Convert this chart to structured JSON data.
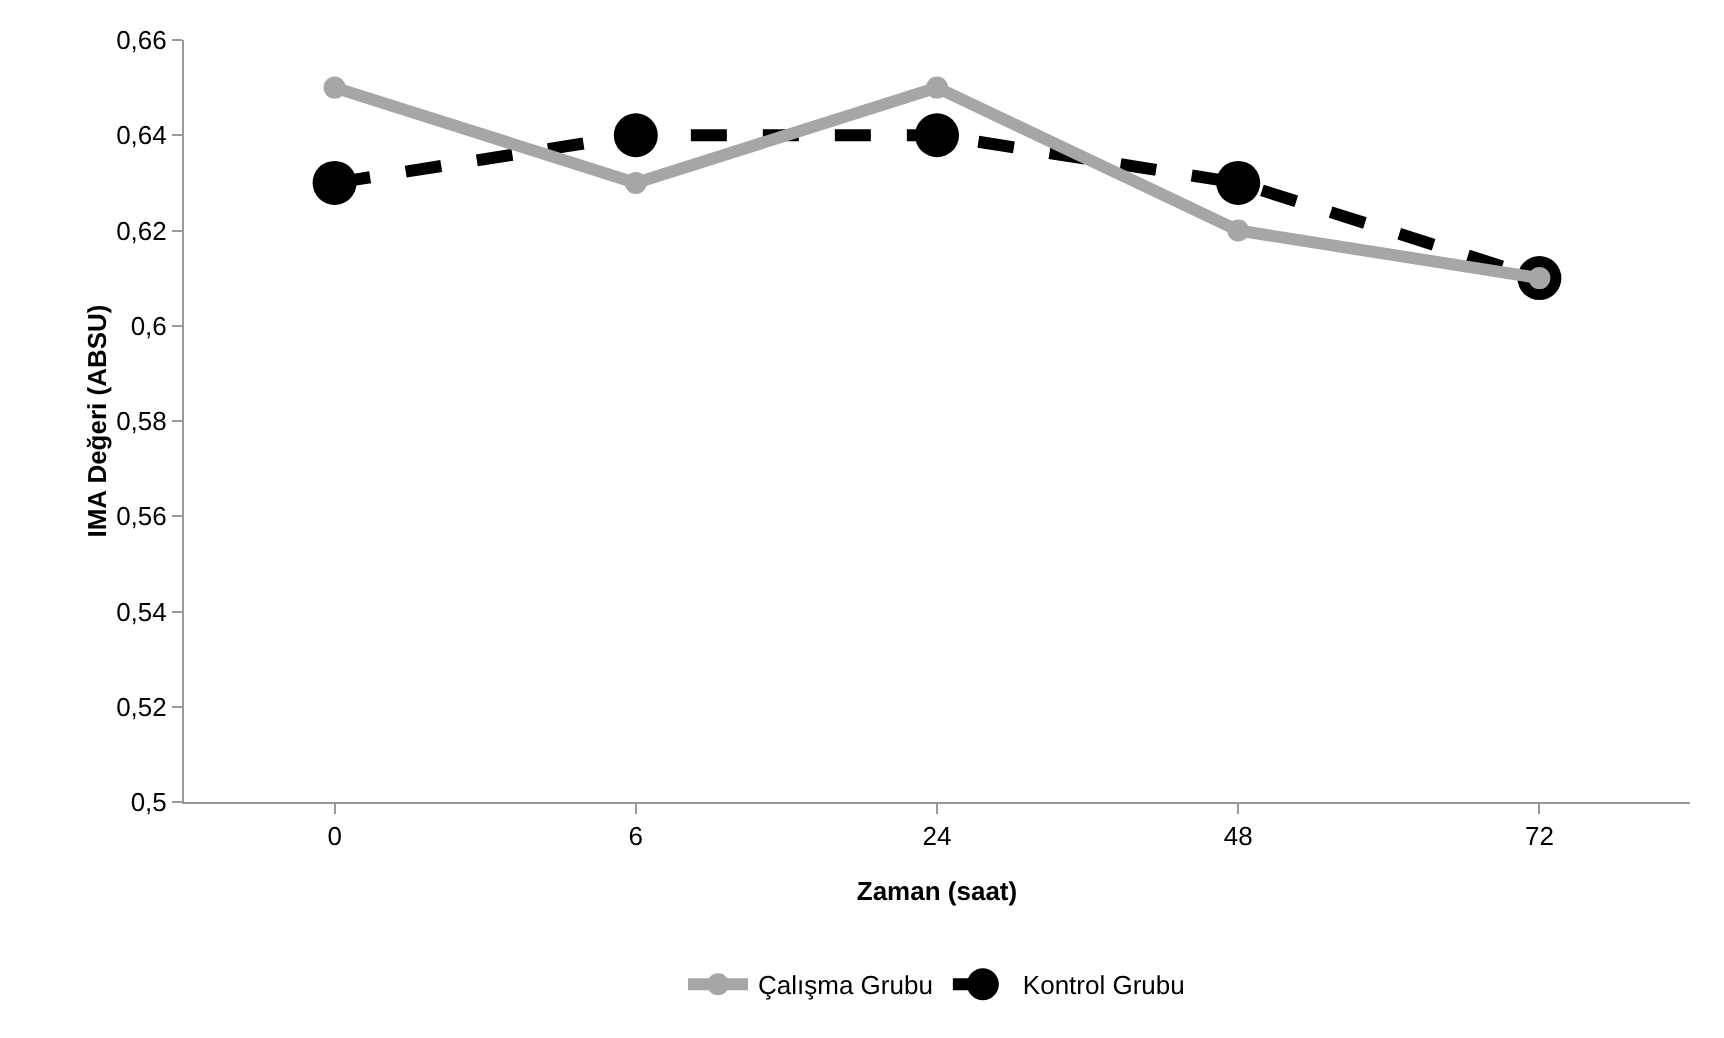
{
  "chart_data": {
    "type": "line",
    "xlabel": "Zaman (saat)",
    "ylabel": "IMA Değeri (ABSU)",
    "categories": [
      "0",
      "6",
      "24",
      "48",
      "72"
    ],
    "series": [
      {
        "name": "Çalışma Grubu",
        "color": "#a6a6a6",
        "values": [
          0.65,
          0.63,
          0.65,
          0.62,
          0.61
        ],
        "line_style": "solid"
      },
      {
        "name": "Kontrol Grubu",
        "color": "#000000",
        "values": [
          0.63,
          0.64,
          0.64,
          0.63,
          0.61
        ],
        "line_style": "dashed"
      }
    ],
    "ylim": [
      0.5,
      0.66
    ],
    "yticks": [
      {
        "value": 0.5,
        "label": "0,5"
      },
      {
        "value": 0.52,
        "label": "0,52"
      },
      {
        "value": 0.54,
        "label": "0,54"
      },
      {
        "value": 0.56,
        "label": "0,56"
      },
      {
        "value": 0.58,
        "label": "0,58"
      },
      {
        "value": 0.6,
        "label": "0,6"
      },
      {
        "value": 0.62,
        "label": "0,62"
      },
      {
        "value": 0.64,
        "label": "0,64"
      },
      {
        "value": 0.66,
        "label": "0,66"
      }
    ],
    "grid": false,
    "legend": "bottom",
    "marker": "circle"
  }
}
